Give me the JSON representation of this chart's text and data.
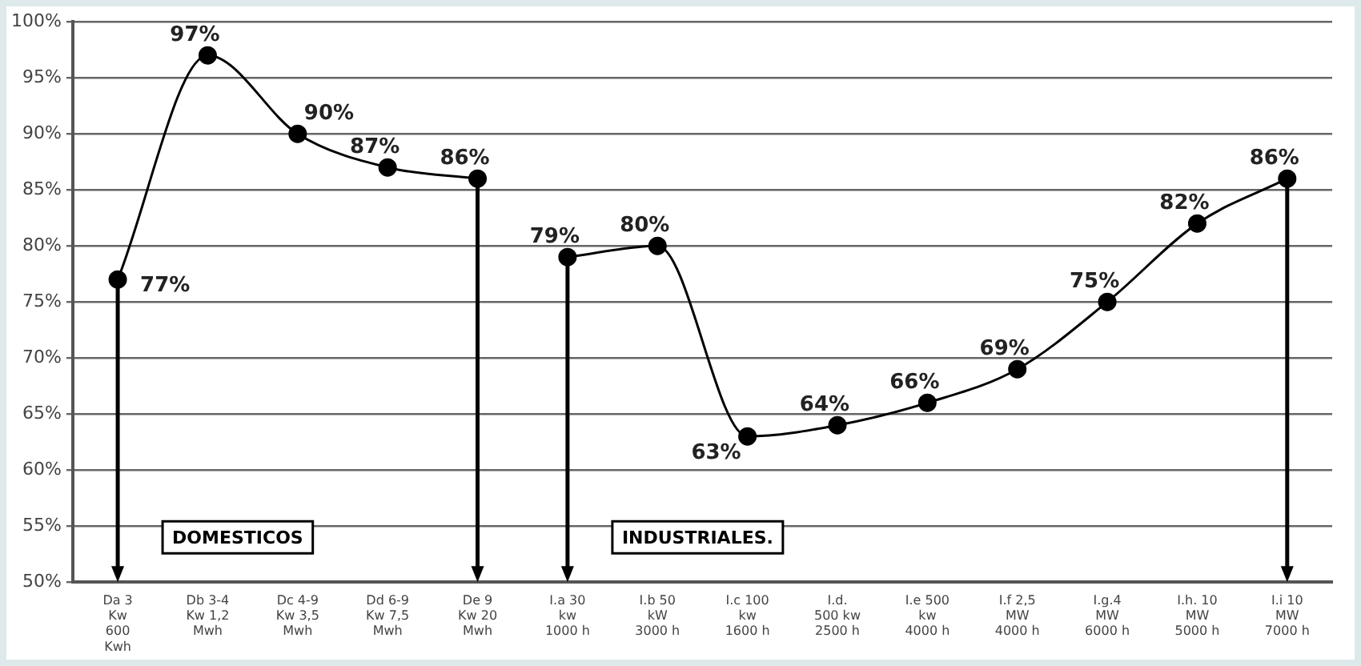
{
  "chart_data": {
    "type": "line",
    "categories": [
      "Da 3\nKw\n600\nKwh",
      "Db 3-4\nKw 1,2\nMwh",
      "Dc 4-9\nKw 3,5\nMwh",
      "Dd 6-9\nKw 7,5\nMwh",
      "De 9\nKw 20\nMwh",
      "I.a 30\nkw\n1000 h",
      "I.b 50\nkW\n3000 h",
      "I.c 100\nkw\n1600 h",
      "I.d.\n500 kw\n2500 h",
      "I.e 500\nkw\n4000 h",
      "I.f 2,5\nMW\n4000 h",
      "I.g.4\nMW\n6000 h",
      "I.h. 10\nMW\n5000 h",
      "I.i 10\nMW\n7000 h"
    ],
    "series": [
      {
        "color": "#000000",
        "values": [
          77,
          97,
          90,
          87,
          86,
          null,
          null,
          null,
          null,
          null,
          null,
          null,
          null,
          null
        ],
        "value_labels": [
          "77%",
          "97%",
          "90%",
          "87%",
          "86%",
          null,
          null,
          null,
          null,
          null,
          null,
          null,
          null,
          null
        ]
      },
      {
        "color": "#000000",
        "values": [
          null,
          null,
          null,
          null,
          null,
          79,
          80,
          63,
          64,
          66,
          69,
          75,
          82,
          86
        ],
        "value_labels": [
          null,
          null,
          null,
          null,
          null,
          "79%",
          "80%",
          "63%",
          "64%",
          "66%",
          "69%",
          "75%",
          "82%",
          "86%"
        ]
      }
    ],
    "ylim": [
      50,
      100
    ],
    "yticks": [
      {
        "value": 50,
        "label": "50%"
      },
      {
        "value": 55,
        "label": "55%"
      },
      {
        "value": 60,
        "label": "60%"
      },
      {
        "value": 65,
        "label": "65%"
      },
      {
        "value": 70,
        "label": "70%"
      },
      {
        "value": 75,
        "label": "75%"
      },
      {
        "value": 80,
        "label": "80%"
      },
      {
        "value": 85,
        "label": "85%"
      },
      {
        "value": 90,
        "label": "90%"
      },
      {
        "value": 95,
        "label": "95%"
      },
      {
        "value": 100,
        "label": "100%"
      }
    ],
    "grid": "y",
    "legend": false,
    "marker": "circle",
    "line_style": "solid",
    "annotations": [
      "DOMESTICOS",
      "INDUSTRIALES."
    ]
  }
}
